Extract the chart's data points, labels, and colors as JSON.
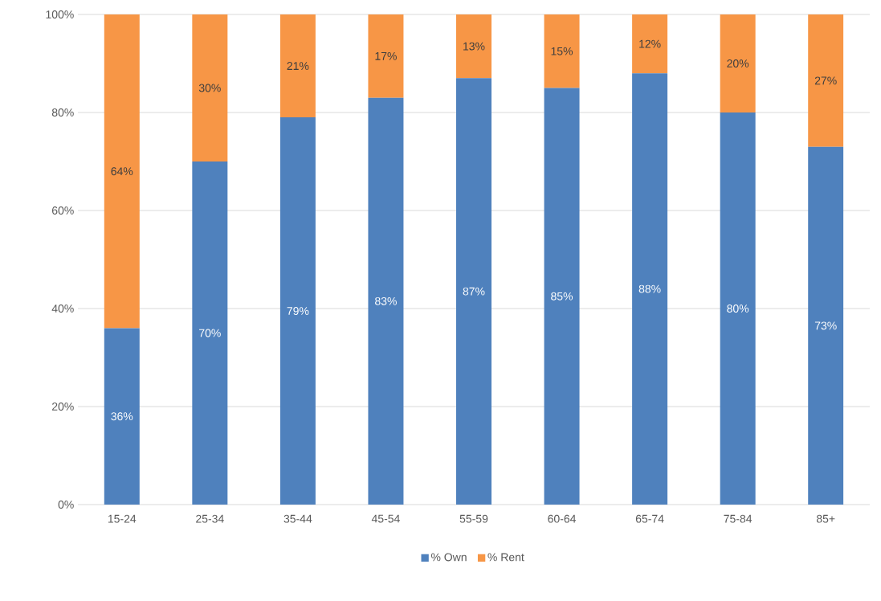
{
  "chart_data": {
    "type": "bar",
    "stacked": true,
    "categories": [
      "15-24",
      "25-34",
      "35-44",
      "45-54",
      "55-59",
      "60-64",
      "65-74",
      "75-84",
      "85+"
    ],
    "series": [
      {
        "name": "% Own",
        "color": "#4f81bd",
        "values": [
          36,
          70,
          79,
          83,
          87,
          85,
          88,
          80,
          73
        ],
        "value_labels": [
          "36%",
          "70%",
          "79%",
          "83%",
          "87%",
          "85%",
          "88%",
          "80%",
          "73%"
        ]
      },
      {
        "name": "% Rent",
        "color": "#f79646",
        "values": [
          64,
          30,
          21,
          17,
          13,
          15,
          12,
          20,
          27
        ],
        "value_labels": [
          "64%",
          "30%",
          "21%",
          "17%",
          "13%",
          "15%",
          "12%",
          "20%",
          "27%"
        ]
      }
    ],
    "ylim": [
      0,
      100
    ],
    "yticks": [
      {
        "value": 0,
        "label": "0%"
      },
      {
        "value": 20,
        "label": "20%"
      },
      {
        "value": 40,
        "label": "40%"
      },
      {
        "value": 60,
        "label": "60%"
      },
      {
        "value": 80,
        "label": "80%"
      },
      {
        "value": 100,
        "label": "100%"
      }
    ],
    "grid": "y",
    "legend": "bottom"
  }
}
